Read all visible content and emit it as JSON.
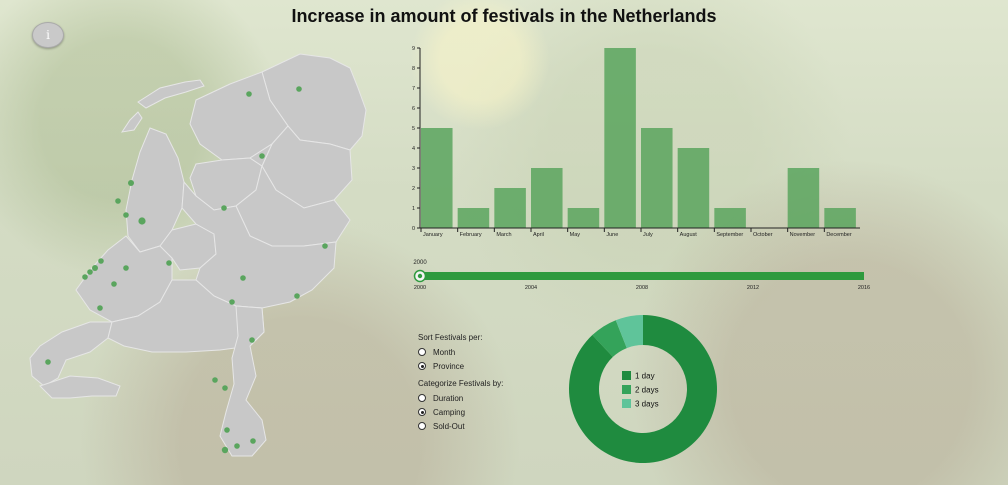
{
  "page": {
    "title": "Increase in amount of festivals in the Netherlands",
    "info_label": "i"
  },
  "colors": {
    "bar": "#5aa55e",
    "map_fill": "#c8c8c8",
    "map_stroke": "#e6e6e6",
    "festival_dot": "#5aa55e",
    "slider_track": "#2e9a3e",
    "donut_1day": "#1f8b3f",
    "donut_2days": "#34a35a",
    "donut_3days": "#5fc49a"
  },
  "chart_data": [
    {
      "type": "bar",
      "categories": [
        "January",
        "February",
        "March",
        "April",
        "May",
        "June",
        "July",
        "August",
        "September",
        "October",
        "November",
        "December"
      ],
      "values": [
        5,
        1,
        2,
        3,
        1,
        9,
        5,
        4,
        1,
        0,
        3,
        1
      ],
      "ylim": [
        0,
        9
      ],
      "yticks": [
        0,
        1,
        2,
        3,
        4,
        5,
        6,
        7,
        8,
        9
      ],
      "title": "",
      "xlabel": "",
      "ylabel": ""
    },
    {
      "type": "pie",
      "labels": [
        "1 day",
        "2 days",
        "3 days"
      ],
      "values": [
        88,
        6,
        6
      ],
      "legend_position": "center"
    }
  ],
  "slider": {
    "min": 2000,
    "max": 2016,
    "value": 2000,
    "value_label": "2000",
    "ticks": [
      "2000",
      "2004",
      "2008",
      "2012",
      "2016"
    ]
  },
  "controls": {
    "sort_label": "Sort Festivals per:",
    "sort_options": [
      {
        "label": "Month",
        "checked": false
      },
      {
        "label": "Province",
        "checked": true
      }
    ],
    "categorize_label": "Categorize Festivals by:",
    "categorize_options": [
      {
        "label": "Duration",
        "checked": false
      },
      {
        "label": "Camping",
        "checked": true
      },
      {
        "label": "Sold-Out",
        "checked": false
      }
    ]
  },
  "map": {
    "festival_count": 28
  }
}
